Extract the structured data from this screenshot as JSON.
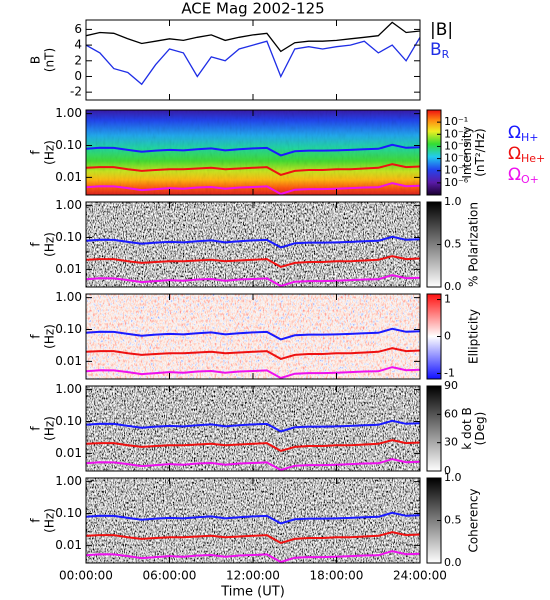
{
  "chart_data": [
    {
      "type": "line",
      "title": "ACE Mag 2002-125",
      "ylabel": [
        "B",
        "(nT)"
      ],
      "x": [
        0,
        1,
        2,
        3,
        4,
        5,
        6,
        7,
        8,
        9,
        10,
        11,
        12,
        13,
        14,
        15,
        16,
        17,
        18,
        19,
        20,
        21,
        22,
        23,
        24
      ],
      "ylim": [
        -3,
        7.2
      ],
      "yticks": [
        -2,
        0,
        2,
        4,
        6
      ],
      "series": [
        {
          "name": "|B|",
          "color": "#000000",
          "values": [
            5.2,
            5.6,
            5.5,
            4.8,
            4.2,
            4.5,
            4.8,
            4.6,
            5.0,
            5.3,
            4.6,
            5.0,
            5.3,
            5.5,
            3.2,
            4.3,
            4.5,
            4.5,
            4.6,
            4.8,
            5.0,
            5.2,
            6.9,
            5.6,
            5.8
          ]
        },
        {
          "name": "B",
          "subscript": "R",
          "color": "#1f2ee6",
          "values": [
            4.0,
            3.0,
            1.0,
            0.5,
            -1.0,
            1.5,
            3.5,
            3.0,
            0.0,
            2.5,
            2.0,
            3.5,
            4.0,
            4.5,
            0.0,
            3.5,
            3.8,
            3.5,
            3.8,
            4.0,
            4.5,
            3.0,
            4.0,
            2.0,
            5.0
          ]
        }
      ]
    },
    {
      "type": "spectrogram",
      "ylabel": [
        "f",
        "(Hz)"
      ],
      "log_y": true,
      "ylim": [
        0.0028,
        1.3
      ],
      "yticks": [
        {
          "value": 1,
          "label": "1.00"
        },
        {
          "value": 0.1,
          "label": "0.10"
        },
        0.01
      ],
      "colormap": "rainbow",
      "log_c": true,
      "clim": [
        1e-07,
        1
      ],
      "clabel": [
        "Intensity",
        "(nT²/Hz)"
      ],
      "cticks": [
        {
          "value": 0.1,
          "label": "10⁻¹"
        },
        {
          "value": 0.01,
          "label": "10⁻²"
        },
        {
          "value": 0.001,
          "label": "10⁻³"
        },
        {
          "value": 0.0001,
          "label": "10⁻⁴"
        },
        {
          "value": 1e-05,
          "label": "10⁻⁵"
        },
        {
          "value": 1e-06,
          "label": "10⁻⁶"
        }
      ],
      "x": [
        0,
        1,
        2,
        3,
        4,
        5,
        6,
        7,
        8,
        9,
        10,
        11,
        12,
        13,
        14,
        15,
        16,
        17,
        18,
        19,
        20,
        21,
        22,
        23,
        24
      ],
      "series": [
        {
          "name": "Ω",
          "subscript": "H+",
          "color": "#1a1aff",
          "values": [
            0.079,
            0.085,
            0.084,
            0.073,
            0.064,
            0.069,
            0.073,
            0.07,
            0.076,
            0.081,
            0.07,
            0.076,
            0.081,
            0.084,
            0.049,
            0.066,
            0.069,
            0.069,
            0.07,
            0.073,
            0.076,
            0.079,
            0.105,
            0.085,
            0.088
          ]
        },
        {
          "name": "Ω",
          "subscript": "He+",
          "color": "#ee1111",
          "values": [
            0.02,
            0.021,
            0.021,
            0.018,
            0.016,
            0.017,
            0.018,
            0.018,
            0.019,
            0.02,
            0.018,
            0.019,
            0.02,
            0.021,
            0.012,
            0.016,
            0.017,
            0.017,
            0.018,
            0.018,
            0.019,
            0.02,
            0.026,
            0.021,
            0.022
          ]
        },
        {
          "name": "Ω",
          "subscript": "O+",
          "color": "#ee11ee",
          "values": [
            0.0049,
            0.0053,
            0.0052,
            0.0046,
            0.004,
            0.0043,
            0.0046,
            0.0044,
            0.0048,
            0.005,
            0.0044,
            0.0048,
            0.005,
            0.0052,
            0.003,
            0.0041,
            0.0043,
            0.0043,
            0.0044,
            0.0046,
            0.0048,
            0.0049,
            0.0066,
            0.0053,
            0.0055
          ]
        }
      ]
    },
    {
      "type": "spectrogram",
      "ylabel": [
        "f",
        "(Hz)"
      ],
      "log_y": true,
      "ylim": [
        0.0028,
        1.3
      ],
      "yticks": [
        {
          "value": 1,
          "label": "1.00"
        },
        {
          "value": 0.1,
          "label": "0.10"
        },
        0.01
      ],
      "colormap": "gray",
      "clim": [
        0,
        1
      ],
      "clabel": [
        "% Polarization"
      ],
      "cticks": [
        {
          "value": 0,
          "label": "0.0"
        },
        0.5,
        {
          "value": 1,
          "label": "1.0"
        }
      ]
    },
    {
      "type": "spectrogram",
      "ylabel": [
        "f",
        "(Hz)"
      ],
      "log_y": true,
      "ylim": [
        0.0028,
        1.3
      ],
      "yticks": [
        {
          "value": 1,
          "label": "1.00"
        },
        {
          "value": 0.1,
          "label": "0.10"
        },
        0.01
      ],
      "colormap": "bwr",
      "clim": [
        -1.15,
        1.15
      ],
      "clabel": [
        "Ellipticity"
      ],
      "cticks": [
        -1,
        0,
        1
      ]
    },
    {
      "type": "spectrogram",
      "ylabel": [
        "f",
        "(Hz)"
      ],
      "log_y": true,
      "ylim": [
        0.0028,
        1.3
      ],
      "yticks": [
        {
          "value": 1,
          "label": "1.00"
        },
        {
          "value": 0.1,
          "label": "0.10"
        },
        0.01
      ],
      "colormap": "gray",
      "clim": [
        0,
        90
      ],
      "clabel": [
        "k dot B",
        "(Deg)"
      ],
      "cticks": [
        0,
        30,
        60,
        90
      ]
    },
    {
      "type": "spectrogram",
      "ylabel": [
        "f",
        "(Hz)"
      ],
      "log_y": true,
      "ylim": [
        0.0028,
        1.3
      ],
      "yticks": [
        {
          "value": 1,
          "label": "1.00"
        },
        {
          "value": 0.1,
          "label": "0.10"
        },
        0.01
      ],
      "colormap": "gray",
      "clim": [
        0,
        1
      ],
      "clabel": [
        "Coherency"
      ],
      "cticks": [
        {
          "value": 0,
          "label": "0.0"
        },
        0.5,
        {
          "value": 1,
          "label": "1.0"
        }
      ],
      "xlabel": "Time (UT)",
      "xlim": [
        0,
        24
      ],
      "xticks": [
        {
          "value": 0,
          "label": "00:00:00"
        },
        {
          "value": 6,
          "label": "06:00:00"
        },
        {
          "value": 12,
          "label": "12:00:00"
        },
        {
          "value": 18,
          "label": "18:00:00"
        },
        {
          "value": 24,
          "label": "24:00:00"
        }
      ]
    }
  ]
}
